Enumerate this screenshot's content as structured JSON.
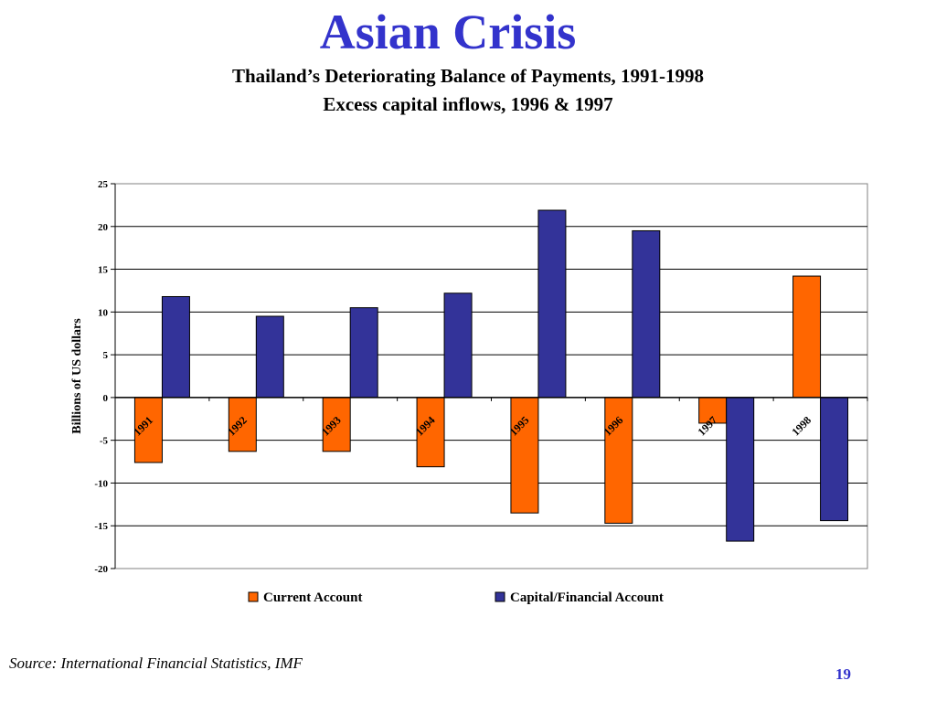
{
  "slide": {
    "title": "Asian Crisis",
    "source": "Source: International Financial Statistics, IMF",
    "page_number": "19",
    "title_color": "#3333cc"
  },
  "chart_data": {
    "type": "bar",
    "title": "Thailand’s Deteriorating Balance of Payments, 1991-1998",
    "subtitle": "Excess capital inflows, 1996 & 1997",
    "xlabel": "",
    "ylabel": "Billions of US dollars",
    "ylim": [
      -20,
      25
    ],
    "yticks": [
      25,
      20,
      15,
      10,
      5,
      0,
      -5,
      -10,
      -15,
      -20
    ],
    "grid": true,
    "legend_position": "bottom",
    "categories": [
      "1991",
      "1992",
      "1993",
      "1994",
      "1995",
      "1996",
      "1997",
      "1998"
    ],
    "series": [
      {
        "name": "Current Account",
        "color": "#ff6600",
        "values": [
          -7.6,
          -6.3,
          -6.3,
          -8.1,
          -13.5,
          -14.7,
          -3.0,
          14.2
        ]
      },
      {
        "name": "Capital/Financial Account",
        "color": "#333399",
        "values": [
          11.8,
          9.5,
          10.5,
          12.2,
          21.9,
          19.5,
          -16.8,
          -14.4
        ]
      }
    ]
  }
}
